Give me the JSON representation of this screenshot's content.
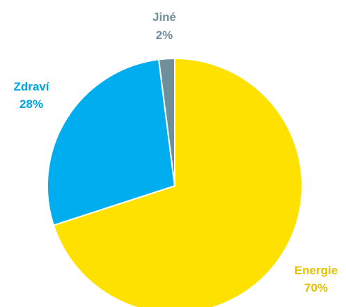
{
  "chart_data": {
    "type": "pie",
    "slices": [
      {
        "label": "Energie",
        "value": 70,
        "value_label": "70%",
        "color": "#FFE100",
        "label_color": "#E3C200"
      },
      {
        "label": "Zdraví",
        "value": 28,
        "value_label": "28%",
        "color": "#00AEEF",
        "label_color": "#00A3E0"
      },
      {
        "label": "Jiné",
        "value": 2,
        "value_label": "2%",
        "color": "#6F8F9B",
        "label_color": "#6F8F9B"
      }
    ],
    "start_angle": "12 o'clock",
    "direction": "clockwise",
    "slice_border_color": "#ffffff"
  }
}
